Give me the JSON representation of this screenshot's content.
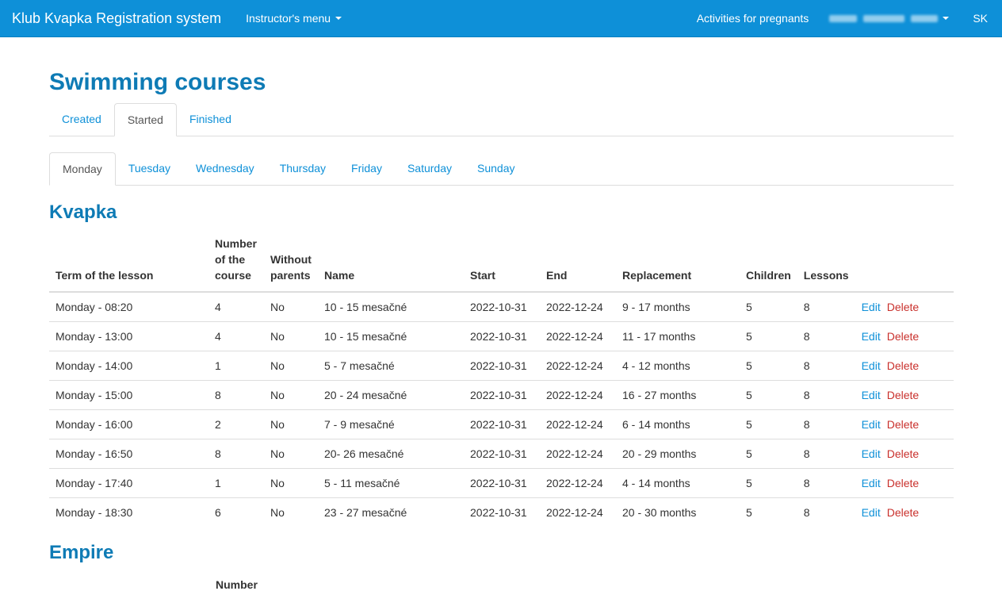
{
  "navbar": {
    "brand": "Klub Kvapka Registration system",
    "instructor_menu": "Instructor's menu",
    "activities_link": "Activities for pregnants",
    "language": "SK"
  },
  "page": {
    "title": "Swimming courses"
  },
  "status_tabs": [
    {
      "label": "Created",
      "active": false
    },
    {
      "label": "Started",
      "active": true
    },
    {
      "label": "Finished",
      "active": false
    }
  ],
  "day_tabs": [
    {
      "label": "Monday",
      "active": true
    },
    {
      "label": "Tuesday",
      "active": false
    },
    {
      "label": "Wednesday",
      "active": false
    },
    {
      "label": "Thursday",
      "active": false
    },
    {
      "label": "Friday",
      "active": false
    },
    {
      "label": "Saturday",
      "active": false
    },
    {
      "label": "Sunday",
      "active": false
    }
  ],
  "table_headers": {
    "term": "Term of the lesson",
    "number_line1": "Number",
    "number_line2": "of the",
    "number_line3": "course",
    "without_line1": "Without",
    "without_line2": "parents",
    "name": "Name",
    "start": "Start",
    "end": "End",
    "replacement": "Replacement",
    "children": "Children",
    "lessons": "Lessons"
  },
  "actions": {
    "edit": "Edit",
    "delete": "Delete"
  },
  "sections": [
    {
      "title": "Kvapka",
      "rows": [
        {
          "term": "Monday - 08:20",
          "number": "4",
          "without_parents": "No",
          "name": "10 - 15 mesačné",
          "start": "2022-10-31",
          "end": "2022-12-24",
          "replacement": "9 - 17 months",
          "children": "5",
          "lessons": "8"
        },
        {
          "term": "Monday - 13:00",
          "number": "4",
          "without_parents": "No",
          "name": "10 - 15 mesačné",
          "start": "2022-10-31",
          "end": "2022-12-24",
          "replacement": "11 - 17 months",
          "children": "5",
          "lessons": "8"
        },
        {
          "term": "Monday - 14:00",
          "number": "1",
          "without_parents": "No",
          "name": "5 - 7 mesačné",
          "start": "2022-10-31",
          "end": "2022-12-24",
          "replacement": "4 - 12 months",
          "children": "5",
          "lessons": "8"
        },
        {
          "term": "Monday - 15:00",
          "number": "8",
          "without_parents": "No",
          "name": "20 - 24 mesačné",
          "start": "2022-10-31",
          "end": "2022-12-24",
          "replacement": "16 - 27 months",
          "children": "5",
          "lessons": "8"
        },
        {
          "term": "Monday - 16:00",
          "number": "2",
          "without_parents": "No",
          "name": "7 - 9 mesačné",
          "start": "2022-10-31",
          "end": "2022-12-24",
          "replacement": "6 - 14 months",
          "children": "5",
          "lessons": "8"
        },
        {
          "term": "Monday - 16:50",
          "number": "8",
          "without_parents": "No",
          "name": "20- 26 mesačné",
          "start": "2022-10-31",
          "end": "2022-12-24",
          "replacement": "20 - 29 months",
          "children": "5",
          "lessons": "8"
        },
        {
          "term": "Monday - 17:40",
          "number": "1",
          "without_parents": "No",
          "name": "5 - 11 mesačné",
          "start": "2022-10-31",
          "end": "2022-12-24",
          "replacement": "4 - 14 months",
          "children": "5",
          "lessons": "8"
        },
        {
          "term": "Monday - 18:30",
          "number": "6",
          "without_parents": "No",
          "name": "23 - 27 mesačné",
          "start": "2022-10-31",
          "end": "2022-12-24",
          "replacement": "20 - 30 months",
          "children": "5",
          "lessons": "8"
        }
      ]
    },
    {
      "title": "Empire",
      "header_visible": "Number"
    }
  ],
  "colors": {
    "navbar": "#0e90d8",
    "heading": "#0e7bb5",
    "link": "#0e90d8",
    "danger": "#c9302c"
  }
}
